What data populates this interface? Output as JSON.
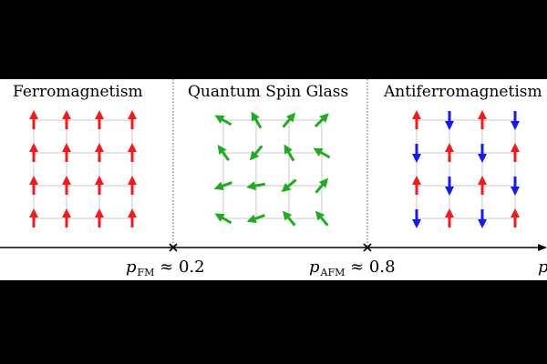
{
  "phases": [
    {
      "id": "fm",
      "title": "Ferromagnetism"
    },
    {
      "id": "qsg",
      "title": "Quantum Spin Glass"
    },
    {
      "id": "afm",
      "title": "Antiferromagnetism"
    }
  ],
  "transitions": [
    {
      "symbol": "p",
      "subscript": "FM",
      "relation": "≈ 0.2"
    },
    {
      "symbol": "p",
      "subscript": "AFM",
      "relation": "≈ 0.8"
    }
  ],
  "axis_label": "p",
  "colors": {
    "fm_spin": "#ee1c1c",
    "afm_up": "#ee1c1c",
    "afm_down": "#1a1ae6",
    "glass_spin": "#22aa22",
    "grid": "#c8c8c8",
    "axis": "#000000"
  },
  "lattices": {
    "fm": [
      [
        0,
        0,
        0,
        0
      ],
      [
        0,
        0,
        0,
        0
      ],
      [
        0,
        0,
        0,
        0
      ],
      [
        0,
        0,
        0,
        0
      ]
    ],
    "qsg": [
      [
        -60,
        -30,
        40,
        45
      ],
      [
        -35,
        -140,
        -30,
        -60
      ],
      [
        -110,
        -100,
        -130,
        40
      ],
      [
        -60,
        -110,
        -40,
        -40
      ]
    ],
    "afm": [
      [
        0,
        180,
        0,
        180
      ],
      [
        180,
        0,
        180,
        0
      ],
      [
        0,
        180,
        0,
        180
      ],
      [
        180,
        0,
        180,
        0
      ]
    ]
  },
  "icons": {
    "transition_marker": "x-marker-icon",
    "axis_arrow": "arrow-right-icon"
  }
}
